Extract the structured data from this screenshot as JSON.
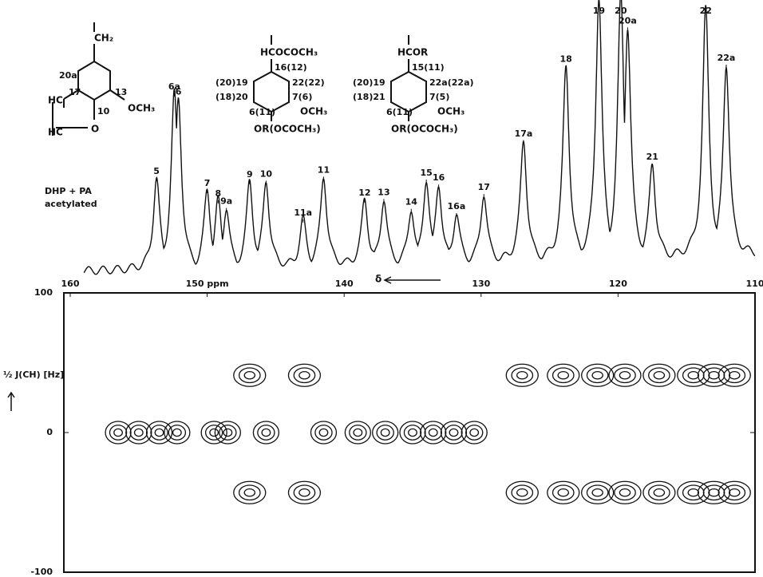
{
  "chart_data": {
    "type": "nmr",
    "sample_label": [
      "DHP + PA",
      "acetylated"
    ],
    "x_label": "δ",
    "y_label": "½ J(CH) [Hz]",
    "xlim": [
      160,
      110
    ],
    "xticks": [
      160,
      {
        "value": 150,
        "label": "150 ppm"
      },
      140,
      130,
      120,
      110
    ],
    "ylim": [
      -100,
      100
    ],
    "yticks": [
      100,
      0,
      -100
    ],
    "peaks": [
      {
        "label": "5",
        "ppm": 153.7,
        "intensity": 35
      },
      {
        "label": "6a",
        "ppm": 152.4,
        "intensity": 67
      },
      {
        "label": "6",
        "ppm": 152.1,
        "intensity": 65
      },
      {
        "label": "7",
        "ppm": 150.0,
        "intensity": 30
      },
      {
        "label": "8",
        "ppm": 149.2,
        "intensity": 26
      },
      {
        "label": "9a",
        "ppm": 148.6,
        "intensity": 23
      },
      {
        "label": "9",
        "ppm": 146.9,
        "intensity": 33
      },
      {
        "label": "10",
        "ppm": 145.7,
        "intensity": 33
      },
      {
        "label": "11a",
        "ppm": 143.0,
        "intensity": 18
      },
      {
        "label": "11",
        "ppm": 141.5,
        "intensity": 34
      },
      {
        "label": "12",
        "ppm": 138.5,
        "intensity": 25
      },
      {
        "label": "13",
        "ppm": 137.1,
        "intensity": 25
      },
      {
        "label": "14",
        "ppm": 135.1,
        "intensity": 21
      },
      {
        "label": "15",
        "ppm": 134.0,
        "intensity": 32
      },
      {
        "label": "16",
        "ppm": 133.1,
        "intensity": 30
      },
      {
        "label": "16a",
        "ppm": 131.8,
        "intensity": 19
      },
      {
        "label": "17",
        "ppm": 129.8,
        "intensity": 26
      },
      {
        "label": "17a",
        "ppm": 126.9,
        "intensity": 46
      },
      {
        "label": "18",
        "ppm": 123.8,
        "intensity": 74
      },
      {
        "label": "19",
        "ppm": 121.4,
        "intensity": 100
      },
      {
        "label": "20",
        "ppm": 119.8,
        "intensity": 100
      },
      {
        "label": "20a",
        "ppm": 119.3,
        "intensity": 88
      },
      {
        "label": "21",
        "ppm": 117.5,
        "intensity": 36
      },
      {
        "label": "22",
        "ppm": 113.6,
        "intensity": 94
      },
      {
        "label": "22a",
        "ppm": 112.1,
        "intensity": 73
      }
    ],
    "cross_peaks": {
      "ppm": [
        156.5,
        155,
        153.5,
        152.2,
        149.5,
        148.5,
        145.7,
        141.5,
        139,
        137,
        135,
        133.5,
        132,
        130.5,
        146.9,
        142.9,
        127,
        124,
        121.5,
        119.5,
        117,
        114.5,
        113,
        111.5,
        146.9,
        142.9,
        127,
        124,
        121.5,
        119.5,
        117,
        114.5,
        113,
        111.5
      ],
      "j": [
        0,
        0,
        0,
        0,
        0,
        0,
        0,
        0,
        0,
        0,
        0,
        0,
        0,
        0,
        41,
        41,
        41,
        41,
        41,
        41,
        41,
        41,
        41,
        41,
        -43,
        -43,
        -43,
        -43,
        -43,
        -43,
        -43,
        -43,
        -43,
        -43
      ]
    },
    "structures": [
      {
        "labels": [
          "CH₂",
          "20a",
          "17",
          "13",
          "10",
          "OCH₃",
          "HC",
          "HC",
          "O"
        ]
      },
      {
        "labels": [
          "HCOCOCH₃",
          "16(12)",
          "(20)19",
          "22(22)",
          "(18)20",
          "7(6)",
          "OCH₃",
          "6(11)",
          "OR(OCOCH₃)"
        ]
      },
      {
        "labels": [
          "HCOR",
          "15(11)",
          "(20)19",
          "22a(22a)",
          "(18)21",
          "7(5)",
          "OCH₃",
          "6(11)",
          "OR(OCOCH₃)"
        ]
      }
    ]
  }
}
